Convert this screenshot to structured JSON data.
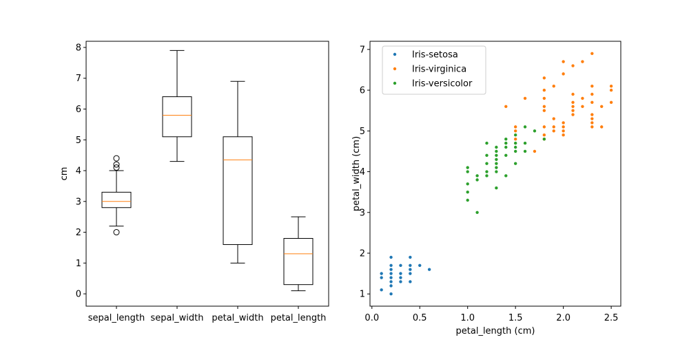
{
  "chart_data": [
    {
      "type": "box",
      "title": "",
      "xlabel": "",
      "ylabel": "cm",
      "ylim": [
        -0.4,
        8.2
      ],
      "yticks": [
        "0",
        "1",
        "2",
        "3",
        "4",
        "5",
        "6",
        "7",
        "8"
      ],
      "categories": [
        "sepal_length",
        "sepal_width",
        "petal_width",
        "petal_length"
      ],
      "boxes": [
        {
          "category": "sepal_length",
          "whisker_low": 2.2,
          "q1": 2.8,
          "median": 3.0,
          "q3": 3.3,
          "whisker_high": 4.0,
          "outliers": [
            2.0,
            4.1,
            4.2,
            4.4
          ]
        },
        {
          "category": "sepal_width",
          "whisker_low": 4.3,
          "q1": 5.1,
          "median": 5.8,
          "q3": 6.4,
          "whisker_high": 7.9,
          "outliers": []
        },
        {
          "category": "petal_width",
          "whisker_low": 1.0,
          "q1": 1.6,
          "median": 4.35,
          "q3": 5.1,
          "whisker_high": 6.9,
          "outliers": []
        },
        {
          "category": "petal_length",
          "whisker_low": 0.1,
          "q1": 0.3,
          "median": 1.3,
          "q3": 1.8,
          "whisker_high": 2.5,
          "outliers": []
        }
      ],
      "box_color": "#000000",
      "median_color": "#ff7f0e"
    },
    {
      "type": "scatter",
      "title": "",
      "xlabel": "petal_length (cm)",
      "ylabel": "petal_width (cm)",
      "xlim": [
        -0.02,
        2.6
      ],
      "ylim": [
        0.7,
        7.2
      ],
      "xticks": [
        "0.0",
        "0.5",
        "1.0",
        "1.5",
        "2.0",
        "2.5"
      ],
      "yticks": [
        "1",
        "2",
        "3",
        "4",
        "5",
        "6",
        "7"
      ],
      "legend": "top-left",
      "series": [
        {
          "name": "Iris-setosa",
          "color": "#1f77b4",
          "points": [
            [
              0.1,
              1.1
            ],
            [
              0.1,
              1.4
            ],
            [
              0.1,
              1.5
            ],
            [
              0.2,
              1.0
            ],
            [
              0.2,
              1.2
            ],
            [
              0.2,
              1.3
            ],
            [
              0.2,
              1.4
            ],
            [
              0.2,
              1.5
            ],
            [
              0.2,
              1.6
            ],
            [
              0.2,
              1.7
            ],
            [
              0.2,
              1.9
            ],
            [
              0.3,
              1.3
            ],
            [
              0.3,
              1.4
            ],
            [
              0.3,
              1.5
            ],
            [
              0.3,
              1.7
            ],
            [
              0.4,
              1.3
            ],
            [
              0.4,
              1.5
            ],
            [
              0.4,
              1.6
            ],
            [
              0.4,
              1.7
            ],
            [
              0.4,
              1.9
            ],
            [
              0.5,
              1.7
            ],
            [
              0.6,
              1.6
            ]
          ]
        },
        {
          "name": "Iris-virginica",
          "color": "#ff7f0e",
          "points": [
            [
              1.4,
              5.6
            ],
            [
              1.5,
              4.8
            ],
            [
              1.5,
              5.0
            ],
            [
              1.5,
              5.1
            ],
            [
              1.6,
              5.8
            ],
            [
              1.7,
              4.5
            ],
            [
              1.8,
              4.8
            ],
            [
              1.8,
              4.9
            ],
            [
              1.8,
              5.1
            ],
            [
              1.8,
              5.5
            ],
            [
              1.8,
              5.6
            ],
            [
              1.8,
              5.8
            ],
            [
              1.8,
              6.0
            ],
            [
              1.8,
              6.3
            ],
            [
              1.9,
              5.0
            ],
            [
              1.9,
              5.1
            ],
            [
              1.9,
              5.3
            ],
            [
              1.9,
              6.1
            ],
            [
              2.0,
              4.9
            ],
            [
              2.0,
              5.0
            ],
            [
              2.0,
              5.1
            ],
            [
              2.0,
              5.2
            ],
            [
              2.0,
              6.4
            ],
            [
              2.0,
              6.7
            ],
            [
              2.1,
              5.4
            ],
            [
              2.1,
              5.5
            ],
            [
              2.1,
              5.6
            ],
            [
              2.1,
              5.7
            ],
            [
              2.1,
              5.9
            ],
            [
              2.1,
              6.6
            ],
            [
              2.2,
              5.6
            ],
            [
              2.2,
              5.8
            ],
            [
              2.2,
              6.7
            ],
            [
              2.3,
              5.1
            ],
            [
              2.3,
              5.2
            ],
            [
              2.3,
              5.3
            ],
            [
              2.3,
              5.4
            ],
            [
              2.3,
              5.7
            ],
            [
              2.3,
              5.9
            ],
            [
              2.3,
              6.1
            ],
            [
              2.3,
              6.9
            ],
            [
              2.4,
              5.1
            ],
            [
              2.4,
              5.6
            ],
            [
              2.5,
              5.7
            ],
            [
              2.5,
              6.0
            ],
            [
              2.5,
              6.1
            ]
          ]
        },
        {
          "name": "Iris-versicolor",
          "color": "#2ca02c",
          "points": [
            [
              1.0,
              3.3
            ],
            [
              1.0,
              3.5
            ],
            [
              1.0,
              3.7
            ],
            [
              1.0,
              4.0
            ],
            [
              1.0,
              4.1
            ],
            [
              1.1,
              3.0
            ],
            [
              1.1,
              3.8
            ],
            [
              1.1,
              3.9
            ],
            [
              1.2,
              3.9
            ],
            [
              1.2,
              4.0
            ],
            [
              1.2,
              4.2
            ],
            [
              1.2,
              4.4
            ],
            [
              1.2,
              4.7
            ],
            [
              1.3,
              3.6
            ],
            [
              1.3,
              4.0
            ],
            [
              1.3,
              4.1
            ],
            [
              1.3,
              4.2
            ],
            [
              1.3,
              4.3
            ],
            [
              1.3,
              4.4
            ],
            [
              1.3,
              4.5
            ],
            [
              1.3,
              4.6
            ],
            [
              1.4,
              3.9
            ],
            [
              1.4,
              4.4
            ],
            [
              1.4,
              4.6
            ],
            [
              1.4,
              4.7
            ],
            [
              1.4,
              4.8
            ],
            [
              1.5,
              4.2
            ],
            [
              1.5,
              4.5
            ],
            [
              1.5,
              4.6
            ],
            [
              1.5,
              4.7
            ],
            [
              1.5,
              4.9
            ],
            [
              1.6,
              4.5
            ],
            [
              1.6,
              4.7
            ],
            [
              1.6,
              5.1
            ],
            [
              1.7,
              5.0
            ],
            [
              1.8,
              4.8
            ]
          ]
        }
      ]
    }
  ]
}
